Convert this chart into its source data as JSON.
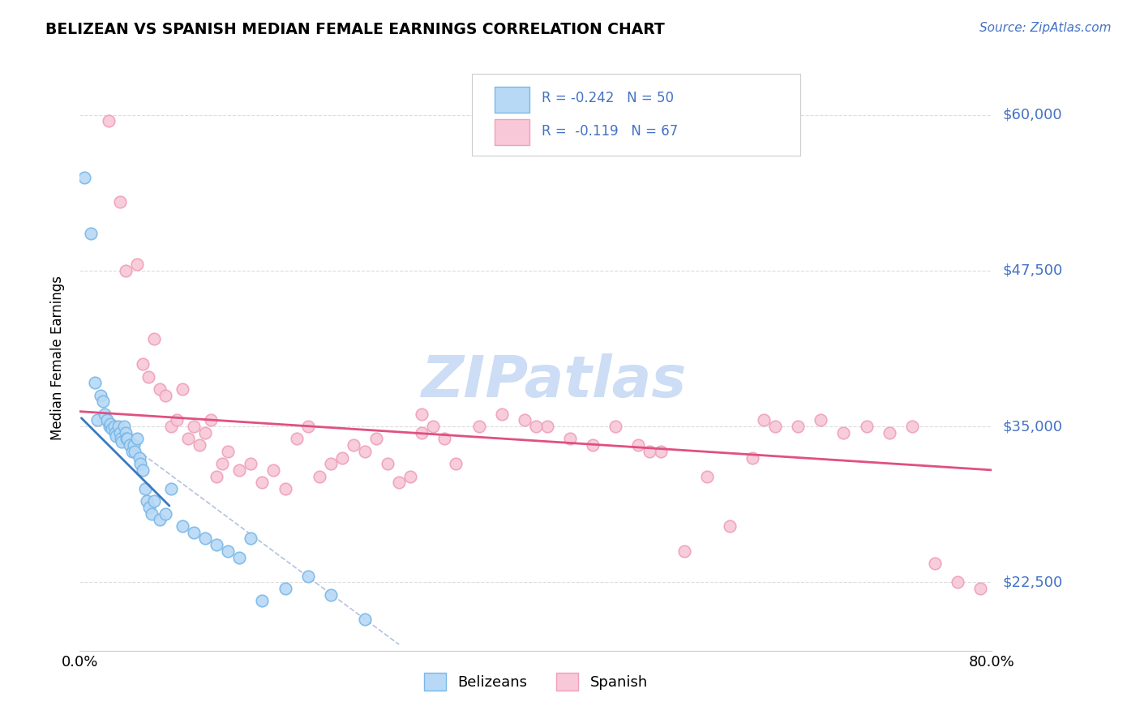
{
  "title": "BELIZEAN VS SPANISH MEDIAN FEMALE EARNINGS CORRELATION CHART",
  "source": "Source: ZipAtlas.com",
  "ylabel": "Median Female Earnings",
  "y_ticks": [
    22500,
    35000,
    47500,
    60000
  ],
  "y_tick_labels": [
    "$22,500",
    "$35,000",
    "$47,500",
    "$60,000"
  ],
  "x_min": 0.0,
  "x_max": 80.0,
  "y_min": 17000,
  "y_max": 64000,
  "belizean_color": "#7ab8e8",
  "belizean_fill": "#b8d9f5",
  "spanish_color": "#f0a0b8",
  "spanish_fill": "#f8c8d8",
  "regression_belizean_color": "#3a7abf",
  "regression_spanish_color": "#e05080",
  "dashed_line_color": "#aabbdd",
  "grid_color": "#dddddd",
  "watermark_color": "#ccddf5",
  "belizean_x": [
    0.4,
    1.0,
    1.3,
    1.5,
    1.8,
    2.0,
    2.2,
    2.4,
    2.6,
    2.7,
    2.8,
    3.0,
    3.1,
    3.2,
    3.4,
    3.5,
    3.6,
    3.7,
    3.9,
    4.0,
    4.1,
    4.2,
    4.4,
    4.6,
    4.7,
    4.8,
    5.0,
    5.2,
    5.3,
    5.5,
    5.7,
    5.9,
    6.1,
    6.3,
    6.5,
    7.0,
    7.5,
    8.0,
    9.0,
    10.0,
    11.0,
    12.0,
    13.0,
    14.0,
    15.0,
    16.0,
    18.0,
    20.0,
    22.0,
    25.0
  ],
  "belizean_y": [
    55000,
    50500,
    38500,
    35500,
    37500,
    37000,
    36000,
    35500,
    35000,
    35200,
    34800,
    35000,
    34500,
    34200,
    35000,
    34500,
    34000,
    33800,
    35000,
    34500,
    34000,
    34000,
    33500,
    33000,
    33500,
    33000,
    34000,
    32500,
    32000,
    31500,
    30000,
    29000,
    28500,
    28000,
    29000,
    27500,
    28000,
    30000,
    27000,
    26500,
    26000,
    25500,
    25000,
    24500,
    26000,
    21000,
    22000,
    23000,
    21500,
    19500
  ],
  "spanish_x": [
    2.5,
    3.5,
    4.0,
    5.0,
    5.5,
    6.0,
    6.5,
    7.0,
    7.5,
    8.0,
    8.5,
    9.0,
    9.5,
    10.0,
    10.5,
    11.0,
    11.5,
    12.0,
    12.5,
    13.0,
    14.0,
    15.0,
    16.0,
    17.0,
    18.0,
    19.0,
    20.0,
    21.0,
    22.0,
    23.0,
    24.0,
    25.0,
    26.0,
    27.0,
    28.0,
    29.0,
    30.0,
    31.0,
    32.0,
    33.0,
    35.0,
    37.0,
    39.0,
    41.0,
    43.0,
    45.0,
    47.0,
    49.0,
    51.0,
    53.0,
    55.0,
    57.0,
    59.0,
    61.0,
    63.0,
    65.0,
    67.0,
    69.0,
    71.0,
    73.0,
    75.0,
    77.0,
    79.0,
    30.0,
    40.0,
    50.0,
    60.0
  ],
  "spanish_y": [
    59500,
    53000,
    47500,
    48000,
    40000,
    39000,
    42000,
    38000,
    37500,
    35000,
    35500,
    38000,
    34000,
    35000,
    33500,
    34500,
    35500,
    31000,
    32000,
    33000,
    31500,
    32000,
    30500,
    31500,
    30000,
    34000,
    35000,
    31000,
    32000,
    32500,
    33500,
    33000,
    34000,
    32000,
    30500,
    31000,
    34500,
    35000,
    34000,
    32000,
    35000,
    36000,
    35500,
    35000,
    34000,
    33500,
    35000,
    33500,
    33000,
    25000,
    31000,
    27000,
    32500,
    35000,
    35000,
    35500,
    34500,
    35000,
    34500,
    35000,
    24000,
    22500,
    22000,
    36000,
    35000,
    33000,
    35500
  ],
  "bel_reg_x0": 0.0,
  "bel_reg_y0": 35800,
  "bel_reg_x1": 8.0,
  "bel_reg_y1": 28500,
  "spa_reg_x0": 0.0,
  "spa_reg_y0": 36200,
  "spa_reg_x1": 80.0,
  "spa_reg_y1": 31500,
  "dash_x0": 1.5,
  "dash_y0": 35500,
  "dash_x1": 28.0,
  "dash_y1": 17500
}
